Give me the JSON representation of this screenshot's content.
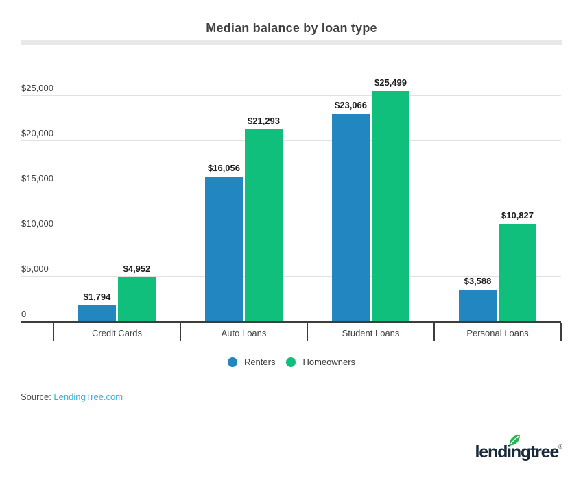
{
  "title": "Median balance by loan type",
  "chart_data": {
    "type": "bar",
    "title": "Median balance by loan type",
    "categories": [
      "Credit Cards",
      "Auto Loans",
      "Student Loans",
      "Personal Loans"
    ],
    "series": [
      {
        "name": "Renters",
        "color": "#2286c0",
        "values": [
          1794,
          16056,
          23066,
          3588
        ],
        "value_labels": [
          "$1,794",
          "$16,056",
          "$23,066",
          "$3,588"
        ]
      },
      {
        "name": "Homeowners",
        "color": "#10bf7b",
        "values": [
          4952,
          21293,
          25499,
          10827
        ],
        "value_labels": [
          "$4,952",
          "$21,293",
          "$25,499",
          "$10,827"
        ]
      }
    ],
    "xlabel": "",
    "ylabel": "",
    "ylim": [
      0,
      25000
    ],
    "yticks": [
      0,
      5000,
      10000,
      15000,
      20000,
      25000
    ],
    "ytick_labels": [
      "0",
      "$5,000",
      "$10,000",
      "$15,000",
      "$20,000",
      "$25,000"
    ],
    "grid": true,
    "legend_position": "bottom"
  },
  "source": {
    "prefix": "Source: ",
    "link_text": "LendingTree.com"
  },
  "branding": {
    "logo_text": "lendingtree",
    "registered_mark": "®"
  },
  "colors": {
    "renters_blue": "#2286c0",
    "homeowners_green": "#10bf7b",
    "source_link_blue": "#2fb0e8",
    "logo_navy": "#17293a",
    "leaf_green": "#2bb356",
    "gridline_gray": "#e1e1e1",
    "axis_dark": "#3d3d3d",
    "title_gray": "#404040"
  }
}
